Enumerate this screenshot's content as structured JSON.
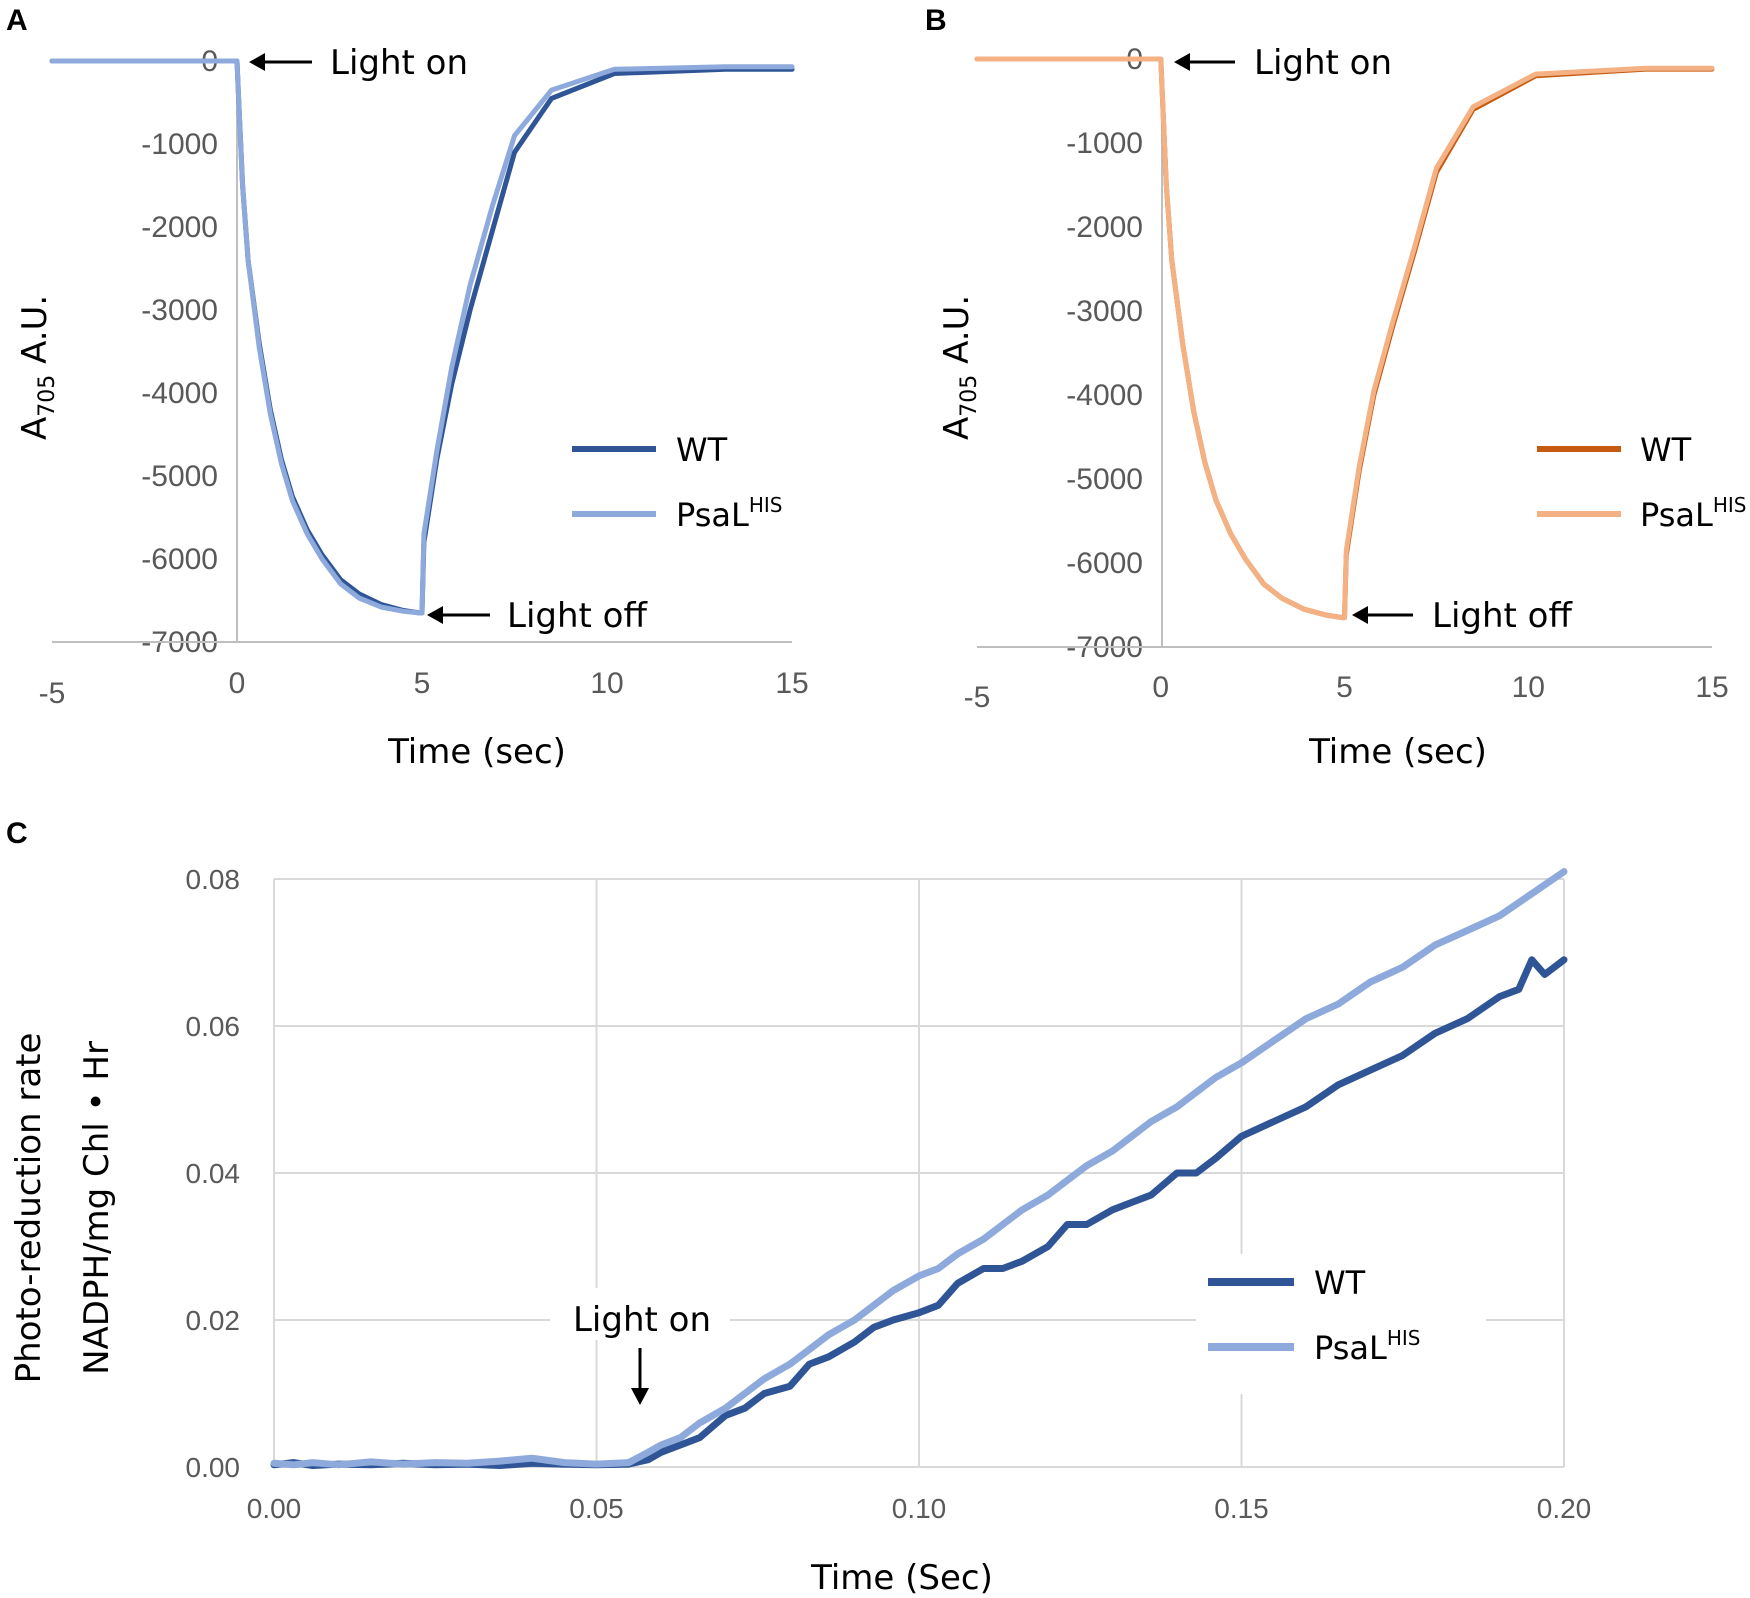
{
  "colors": {
    "wt_blue": "#2F5597",
    "psal_blue": "#8EA9DB",
    "wt_orange": "#C55A11",
    "psal_orange": "#F4B183",
    "axis": "#BFBFBF",
    "grid": "#D9D9D9"
  },
  "chart_data": [
    {
      "panel": "A",
      "type": "line",
      "xlabel": "Time (sec)",
      "ylabel_main": "A",
      "ylabel_sub": "705",
      "ylabel_rest": " A.U.",
      "xlim": [
        -5,
        15
      ],
      "ylim": [
        -7000,
        0
      ],
      "xticks": [
        -5,
        0,
        5,
        10,
        15
      ],
      "xtick_labels": [
        "-5",
        "0",
        "5",
        "10",
        "15"
      ],
      "yticks": [
        0,
        -1000,
        -2000,
        -3000,
        -4000,
        -5000,
        -6000,
        -7000
      ],
      "ytick_labels": [
        "0",
        "-1000",
        "-2000",
        "-3000",
        "-4000",
        "-5000",
        "-6000",
        "-7000"
      ],
      "annotations": [
        {
          "text": "Light on",
          "x": 0,
          "y": 0
        },
        {
          "text": "Light off",
          "x": 5,
          "y": -6650
        }
      ],
      "legend": {
        "entries": [
          "WT",
          "PsaL"
        ],
        "superscripts": [
          "",
          "HIS"
        ],
        "position": "right"
      },
      "series": [
        {
          "name": "WT",
          "colorKey": "wt_blue",
          "x": [
            -5,
            0,
            0.05,
            0.15,
            0.3,
            0.6,
            0.9,
            1.2,
            1.5,
            1.9,
            2.3,
            2.8,
            3.3,
            3.9,
            4.5,
            4.95,
            5.0,
            5.05,
            5.4,
            5.8,
            6.3,
            6.9,
            7.5,
            8.5,
            10.2,
            13.2,
            15
          ],
          "y": [
            0,
            0,
            -500,
            -1500,
            -2400,
            -3400,
            -4200,
            -4800,
            -5250,
            -5650,
            -5950,
            -6250,
            -6420,
            -6550,
            -6620,
            -6650,
            -6650,
            -5800,
            -4800,
            -3900,
            -3000,
            -2050,
            -1100,
            -450,
            -150,
            -100,
            -100
          ]
        },
        {
          "name": "PsaL HIS",
          "colorKey": "psal_blue",
          "x": [
            -5,
            0,
            0.05,
            0.15,
            0.3,
            0.6,
            0.9,
            1.2,
            1.5,
            1.9,
            2.3,
            2.8,
            3.3,
            3.9,
            4.5,
            4.95,
            5.0,
            5.05,
            5.4,
            5.8,
            6.3,
            6.9,
            7.5,
            8.5,
            10.2,
            13.2,
            15
          ],
          "y": [
            0,
            0,
            -500,
            -1500,
            -2400,
            -3450,
            -4250,
            -4850,
            -5300,
            -5700,
            -6000,
            -6300,
            -6470,
            -6580,
            -6630,
            -6650,
            -6650,
            -5700,
            -4700,
            -3700,
            -2700,
            -1750,
            -900,
            -350,
            -100,
            -70,
            -70
          ]
        }
      ]
    },
    {
      "panel": "B",
      "type": "line",
      "xlabel": "Time (sec)",
      "ylabel_main": "A",
      "ylabel_sub": "705",
      "ylabel_rest": " A.U.",
      "xlim": [
        -5,
        15
      ],
      "ylim": [
        -7000,
        0
      ],
      "xticks": [
        -5,
        0,
        5,
        10,
        15
      ],
      "xtick_labels": [
        "-5",
        "0",
        "5",
        "10",
        "15"
      ],
      "yticks": [
        0,
        -1000,
        -2000,
        -3000,
        -4000,
        -5000,
        -6000,
        -7000
      ],
      "ytick_labels": [
        "0",
        "-1000",
        "-2000",
        "-3000",
        "-4000",
        "-5000",
        "-6000",
        "-7000"
      ],
      "annotations": [
        {
          "text": "Light on",
          "x": 0,
          "y": 0
        },
        {
          "text": "Light off",
          "x": 5,
          "y": -6650
        }
      ],
      "legend": {
        "entries": [
          "WT",
          "PsaL"
        ],
        "superscripts": [
          "",
          "HIS"
        ],
        "position": "right"
      },
      "series": [
        {
          "name": "WT",
          "colorKey": "wt_orange",
          "x": [
            -5,
            0,
            0.05,
            0.15,
            0.3,
            0.6,
            0.9,
            1.2,
            1.5,
            1.9,
            2.3,
            2.8,
            3.3,
            3.9,
            4.5,
            4.95,
            5.0,
            5.05,
            5.4,
            5.8,
            6.3,
            6.9,
            7.5,
            8.5,
            10.2,
            13.2,
            15
          ],
          "y": [
            0,
            0,
            -500,
            -1500,
            -2400,
            -3400,
            -4200,
            -4800,
            -5250,
            -5650,
            -5950,
            -6250,
            -6420,
            -6550,
            -6620,
            -6650,
            -6650,
            -5900,
            -4900,
            -4000,
            -3200,
            -2300,
            -1350,
            -600,
            -200,
            -120,
            -120
          ]
        },
        {
          "name": "PsaL HIS",
          "colorKey": "psal_orange",
          "x": [
            -5,
            0,
            0.05,
            0.15,
            0.3,
            0.6,
            0.9,
            1.2,
            1.5,
            1.9,
            2.3,
            2.8,
            3.3,
            3.9,
            4.5,
            4.95,
            5.0,
            5.05,
            5.4,
            5.8,
            6.3,
            6.9,
            7.5,
            8.5,
            10.2,
            13.2,
            15
          ],
          "y": [
            0,
            0,
            -500,
            -1500,
            -2400,
            -3400,
            -4200,
            -4800,
            -5250,
            -5650,
            -5950,
            -6250,
            -6420,
            -6550,
            -6620,
            -6650,
            -6650,
            -5850,
            -4850,
            -3950,
            -3150,
            -2250,
            -1300,
            -570,
            -180,
            -110,
            -110
          ]
        }
      ]
    },
    {
      "panel": "C",
      "type": "line",
      "xlabel": "Time (Sec)",
      "ylabel_line1": "Photo-reduction rate",
      "ylabel_line2": "NADPH/mg Chl • Hr",
      "xlim": [
        0,
        0.2
      ],
      "ylim": [
        0,
        0.08
      ],
      "grid": true,
      "xticks": [
        0,
        0.05,
        0.1,
        0.15,
        0.2
      ],
      "xtick_labels": [
        "0.00",
        "0.05",
        "0.10",
        "0.15",
        "0.20"
      ],
      "yticks": [
        0,
        0.02,
        0.04,
        0.06,
        0.08
      ],
      "ytick_labels": [
        "0.00",
        "0.02",
        "0.04",
        "0.06",
        "0.08"
      ],
      "annotations": [
        {
          "text": "Light on",
          "x": 0.057,
          "y": 0.0
        }
      ],
      "legend": {
        "entries": [
          "WT",
          "PsaL"
        ],
        "superscripts": [
          "",
          "HIS"
        ],
        "position": "lower-right"
      },
      "series": [
        {
          "name": "WT",
          "colorKey": "wt_blue",
          "x": [
            0.0,
            0.003,
            0.006,
            0.01,
            0.015,
            0.02,
            0.025,
            0.03,
            0.035,
            0.04,
            0.045,
            0.05,
            0.055,
            0.058,
            0.06,
            0.063,
            0.066,
            0.07,
            0.073,
            0.076,
            0.08,
            0.083,
            0.086,
            0.09,
            0.093,
            0.096,
            0.1,
            0.103,
            0.106,
            0.11,
            0.113,
            0.116,
            0.12,
            0.123,
            0.126,
            0.13,
            0.133,
            0.136,
            0.14,
            0.143,
            0.146,
            0.15,
            0.155,
            0.16,
            0.165,
            0.17,
            0.175,
            0.18,
            0.185,
            0.19,
            0.193,
            0.195,
            0.197,
            0.2
          ],
          "y": [
            0.0003,
            0.0006,
            0.0002,
            0.0004,
            0.0003,
            0.0005,
            0.0003,
            0.0004,
            0.0002,
            0.0005,
            0.0004,
            0.0003,
            0.0004,
            0.001,
            0.002,
            0.003,
            0.004,
            0.007,
            0.008,
            0.01,
            0.011,
            0.014,
            0.015,
            0.017,
            0.019,
            0.02,
            0.021,
            0.022,
            0.025,
            0.027,
            0.027,
            0.028,
            0.03,
            0.033,
            0.033,
            0.035,
            0.036,
            0.037,
            0.04,
            0.04,
            0.042,
            0.045,
            0.047,
            0.049,
            0.052,
            0.054,
            0.056,
            0.059,
            0.061,
            0.064,
            0.065,
            0.069,
            0.067,
            0.069
          ]
        },
        {
          "name": "PsaL HIS",
          "colorKey": "psal_blue",
          "x": [
            0.0,
            0.003,
            0.006,
            0.01,
            0.015,
            0.02,
            0.025,
            0.03,
            0.035,
            0.04,
            0.045,
            0.05,
            0.055,
            0.058,
            0.06,
            0.063,
            0.066,
            0.07,
            0.073,
            0.076,
            0.08,
            0.083,
            0.086,
            0.09,
            0.093,
            0.096,
            0.1,
            0.103,
            0.106,
            0.11,
            0.113,
            0.116,
            0.12,
            0.123,
            0.126,
            0.13,
            0.133,
            0.136,
            0.14,
            0.143,
            0.146,
            0.15,
            0.155,
            0.16,
            0.165,
            0.17,
            0.175,
            0.18,
            0.185,
            0.19,
            0.195,
            0.2
          ],
          "y": [
            0.0005,
            0.0003,
            0.0006,
            0.0003,
            0.0007,
            0.0004,
            0.0006,
            0.0005,
            0.0008,
            0.0012,
            0.0006,
            0.0004,
            0.0006,
            0.002,
            0.003,
            0.004,
            0.006,
            0.008,
            0.01,
            0.012,
            0.014,
            0.016,
            0.018,
            0.02,
            0.022,
            0.024,
            0.026,
            0.027,
            0.029,
            0.031,
            0.033,
            0.035,
            0.037,
            0.039,
            0.041,
            0.043,
            0.045,
            0.047,
            0.049,
            0.051,
            0.053,
            0.055,
            0.058,
            0.061,
            0.063,
            0.066,
            0.068,
            0.071,
            0.073,
            0.075,
            0.078,
            0.081
          ]
        }
      ]
    }
  ]
}
